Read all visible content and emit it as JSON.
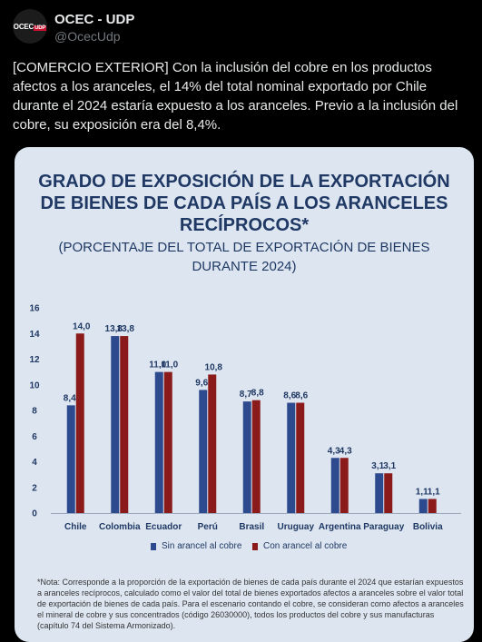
{
  "tweet": {
    "avatar_label": "OCEC",
    "avatar_sub": "UDP",
    "name": "OCEC - UDP",
    "handle": "@OcecUdp",
    "text": "[COMERCIO EXTERIOR] Con la inclusión del cobre en los productos afectos a los aranceles, el 14% del total nominal exportado por Chile durante el 2024 estaría expuesto a los aranceles. Previo a la inclusión del cobre, su exposición era del 8,4%."
  },
  "colors": {
    "series_sin": "#2e4a8e",
    "series_con": "#8b1a1a",
    "title": "#1f3864",
    "background": "#dde6f0"
  },
  "chart_data": {
    "type": "bar",
    "title_lines": [
      "GRADO DE EXPOSICIÓN DE LA EXPORTACIÓN",
      "DE BIENES DE CADA PAÍS A LOS ARANCELES",
      "RECÍPROCOS*"
    ],
    "subtitle_lines": [
      "(PORCENTAJE DEL TOTAL DE EXPORTACIÓN DE BIENES",
      "DURANTE 2024)"
    ],
    "categories": [
      "Chile",
      "Colombia",
      "Ecuador",
      "Perú",
      "Brasil",
      "Uruguay",
      "Argentina",
      "Paraguay",
      "Bolivia"
    ],
    "series": [
      {
        "name": "Sin arancel al cobre",
        "values": [
          8.4,
          13.8,
          11.0,
          9.6,
          8.7,
          8.6,
          4.3,
          3.1,
          1.1
        ],
        "labels": [
          "8,4",
          "13,8",
          "11,0",
          "9,6",
          "8,7",
          "8,6",
          "4,3",
          "3,1",
          "1,1"
        ]
      },
      {
        "name": "Con arancel al cobre",
        "values": [
          14.0,
          13.8,
          11.0,
          10.8,
          8.8,
          8.6,
          4.3,
          3.1,
          1.1
        ],
        "labels": [
          "14,0",
          "13,8",
          "11,0",
          "10,8",
          "8,8",
          "8,6",
          "4,3",
          "3,1",
          "1,1"
        ]
      }
    ],
    "yticks": [
      "0",
      "2",
      "4",
      "6",
      "8",
      "10",
      "12",
      "14",
      "16"
    ],
    "ylim": [
      0,
      16
    ],
    "grid": false,
    "legend_position": "bottom",
    "note_lines": [
      "*Nota: Corresponde a la proporción de la exportación de bienes de cada país durante el 2024 que estarían expuestos",
      "a aranceles recíprocos, calculado como el valor del total de bienes exportados afectos a aranceles sobre el valor total",
      "de exportación de bienes de cada país. Para el escenario contando el cobre, se consideran como afectos a aranceles",
      "el mineral de cobre y sus concentrados (código 26030000), todos los productos del cobre y sus manufacturas",
      "(capítulo 74 del Sistema Armonizado)."
    ]
  }
}
